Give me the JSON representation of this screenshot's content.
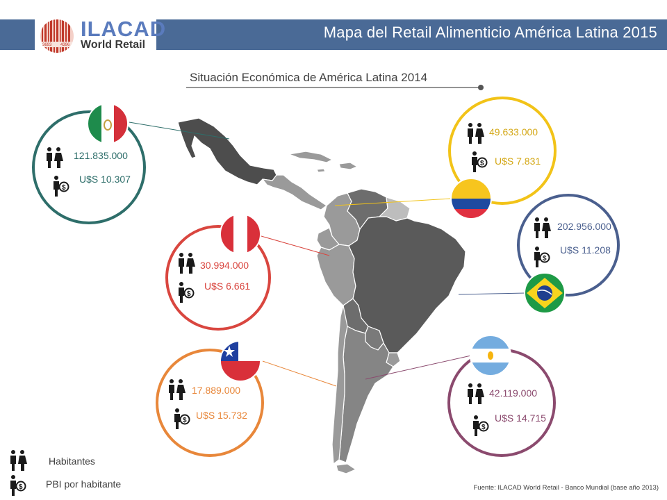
{
  "header": {
    "title": "Mapa del Retail Alimenticio América Latina 2015"
  },
  "logo": {
    "name": "ILACAD",
    "sub": "World Retail",
    "badge_left": "3693",
    "badge_right": "4396"
  },
  "subtitle": "Situación Económica de América Latina 2014",
  "countries": [
    {
      "id": "mexico",
      "population": "121.835.000",
      "gdp": "U$S 10.307",
      "color": "#2e6e6a"
    },
    {
      "id": "colombia",
      "population": "49.633.000",
      "gdp": "U$S  7.831",
      "color": "#f2c318"
    },
    {
      "id": "brasil",
      "population": "202.956.000",
      "gdp": "U$S 11.208",
      "color": "#4a5f8e"
    },
    {
      "id": "peru",
      "population": "30.994.000",
      "gdp": "U$S 6.661",
      "color": "#d9463f"
    },
    {
      "id": "chile",
      "population": "17.889.000",
      "gdp": "U$S 15.732",
      "color": "#e8873a"
    },
    {
      "id": "argentina",
      "population": "42.119.000",
      "gdp": "U$S 14.715",
      "color": "#8b4a6e"
    }
  ],
  "legend": {
    "population_label": "Habitantes",
    "gdp_label": "PBI por habitante"
  },
  "source": "Fuente: ILACAD World Retail  - Banco Mundial (base año 2013)",
  "icons": [
    "people-icon",
    "money-person-icon"
  ]
}
